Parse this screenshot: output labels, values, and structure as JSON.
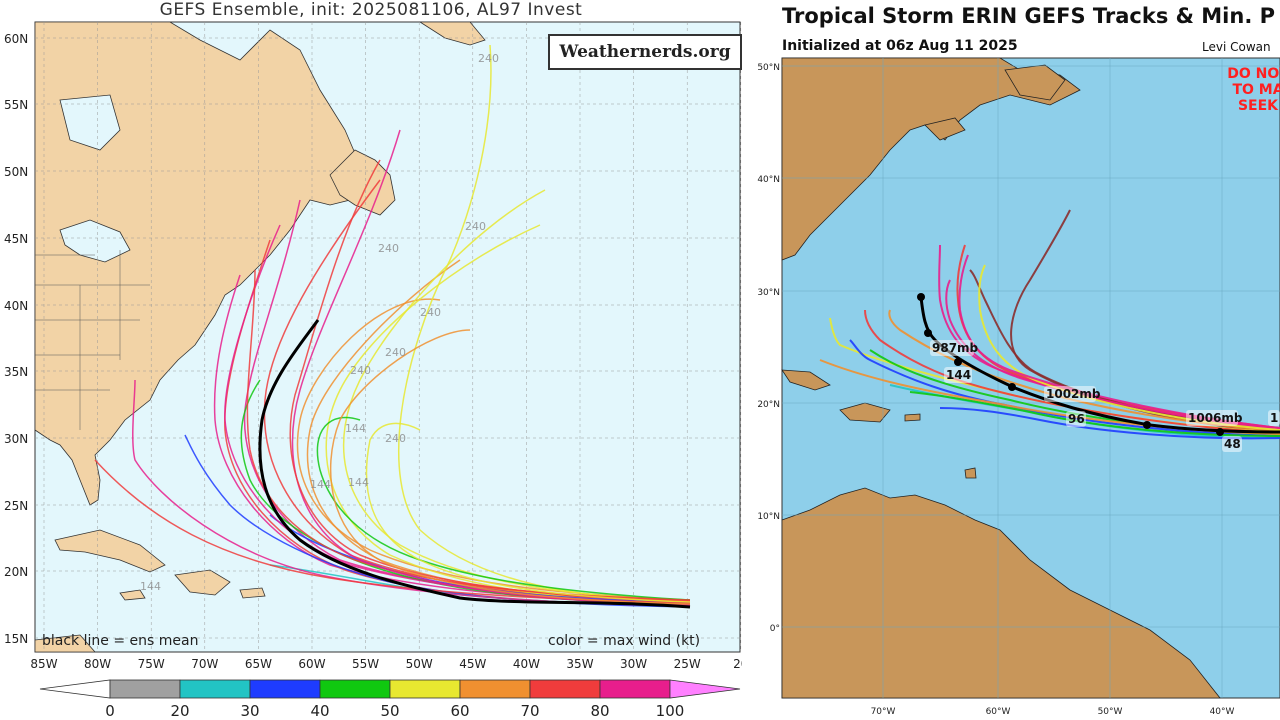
{
  "left": {
    "title": "GEFS Ensemble, init: 2025081106, AL97 Invest",
    "watermark": "Weathernerds.org",
    "legend_left": "black line = ens mean",
    "legend_right": "color = max wind (kt)",
    "lat_labels": [
      "60N",
      "55N",
      "50N",
      "45N",
      "40N",
      "35N",
      "30N",
      "25N",
      "20N",
      "15N"
    ],
    "lon_labels": [
      "85W",
      "80W",
      "75W",
      "70W",
      "65W",
      "60W",
      "55W",
      "50W",
      "45W",
      "40W",
      "35W",
      "30W",
      "25W",
      "20"
    ],
    "hour_labels": [
      "240",
      "240",
      "240",
      "240",
      "240",
      "240",
      "240",
      "144",
      "144",
      "144",
      "144"
    ],
    "colorbar_labels": [
      "0",
      "20",
      "30",
      "40",
      "50",
      "60",
      "70",
      "80",
      "100"
    ],
    "colorbar_colors": [
      "#a0a0a0",
      "#22c4c4",
      "#1e3cff",
      "#10c810",
      "#e8e830",
      "#f09030",
      "#f03c3c",
      "#e81e8c",
      "#ff80ff"
    ],
    "colors": {
      "ocean": "#e3f7fc",
      "land": "#f2d3a6",
      "mean": "#000000"
    }
  },
  "right": {
    "title": "Tropical Storm ERIN GEFS Tracks & Min. P",
    "subtitle": "Initialized at 06z Aug 11 2025",
    "author": "Levi Cowan",
    "warning": [
      "DO NOT",
      "TO MA",
      "SEEK"
    ],
    "lat_labels": [
      "50°N",
      "40°N",
      "30°N",
      "20°N",
      "10°N",
      "0°"
    ],
    "lon_labels": [
      "70°W",
      "60°W",
      "50°W",
      "40°W"
    ],
    "pressure_labels": [
      "987mb",
      "1002mb",
      "1006mb",
      "1"
    ],
    "hour_labels": [
      "144",
      "96",
      "48"
    ],
    "colors": {
      "ocean": "#8ecfea",
      "land": "#c8965a",
      "mean": "#000000"
    }
  }
}
